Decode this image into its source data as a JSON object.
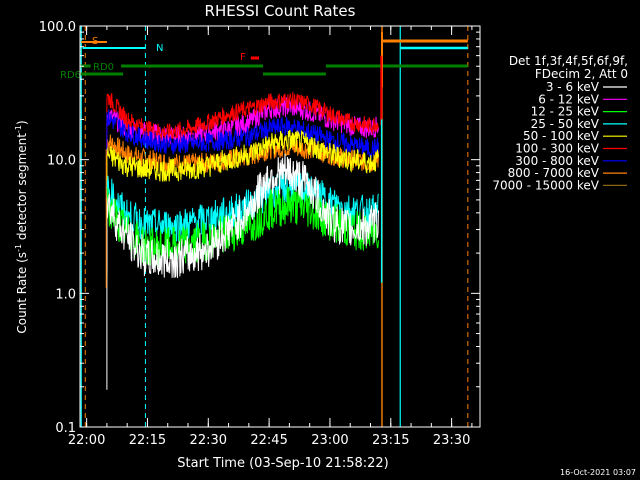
{
  "chart_data": {
    "type": "line",
    "title": "RHESSI Count Rates",
    "xlabel": "Start Time (03-Sep-10 21:58:22)",
    "ylabel_parts": [
      "Count Rate (s",
      "-1",
      " detector segment",
      "-1",
      ")"
    ],
    "yscale": "log",
    "xlim": [
      "21:58:22",
      "23:37:00"
    ],
    "ylim": [
      0.1,
      100.0
    ],
    "x_ticks": [
      "22:00",
      "22:15",
      "22:30",
      "22:45",
      "23:00",
      "23:15",
      "23:30"
    ],
    "y_ticks": [
      "0.1",
      "1.0",
      "10.0",
      "100.0"
    ],
    "legend_position": "right",
    "legend_header": [
      "Det 1f,3f,4f,5f,6f,9f,",
      "FDecim 2, Att 0"
    ],
    "grid": false,
    "series": [
      {
        "name": "3 - 6 keV",
        "color": "#ffffff",
        "x": [
          "22:05",
          "22:08",
          "22:12",
          "22:15",
          "22:20",
          "22:25",
          "22:30",
          "22:35",
          "22:40",
          "22:45",
          "22:50",
          "22:55",
          "23:00",
          "23:05",
          "23:10",
          "23:12"
        ],
        "values": [
          5.0,
          3.2,
          2.2,
          1.8,
          1.8,
          1.9,
          2.2,
          3.0,
          4.2,
          7.5,
          8.0,
          6.5,
          3.5,
          3.0,
          3.2,
          3.5
        ]
      },
      {
        "name": "6 - 12 keV",
        "color": "#ff00ff",
        "x": [
          "22:05",
          "22:10",
          "22:15",
          "22:20",
          "22:25",
          "22:30",
          "22:35",
          "22:40",
          "22:45",
          "22:50",
          "22:55",
          "23:00",
          "23:05",
          "23:10",
          "23:12"
        ],
        "values": [
          22,
          17,
          16,
          15,
          15,
          16,
          17,
          19,
          24,
          25,
          23,
          20,
          18,
          17,
          18
        ]
      },
      {
        "name": "12 - 25 keV",
        "color": "#00ff00",
        "x": [
          "22:05",
          "22:10",
          "22:15",
          "22:20",
          "22:25",
          "22:30",
          "22:35",
          "22:40",
          "22:45",
          "22:50",
          "22:55",
          "23:00",
          "23:05",
          "23:10",
          "23:12"
        ],
        "values": [
          4.5,
          2.8,
          2.2,
          2.2,
          2.3,
          2.5,
          2.8,
          3.2,
          4.2,
          4.6,
          4.3,
          3.5,
          3.0,
          2.8,
          3.0
        ]
      },
      {
        "name": "25 - 50 keV",
        "color": "#00ffff",
        "x": [
          "22:05",
          "22:10",
          "22:15",
          "22:20",
          "22:25",
          "22:30",
          "22:35",
          "22:40",
          "22:45",
          "22:50",
          "22:55",
          "23:00",
          "23:05",
          "23:10",
          "23:12"
        ],
        "values": [
          6.0,
          3.8,
          3.2,
          3.2,
          3.3,
          3.6,
          4.0,
          4.5,
          5.8,
          6.3,
          5.9,
          4.8,
          4.2,
          4.0,
          4.2
        ]
      },
      {
        "name": "50 - 100 keV",
        "color": "#ffff00",
        "x": [
          "22:05",
          "22:10",
          "22:15",
          "22:20",
          "22:25",
          "22:30",
          "22:35",
          "22:40",
          "22:45",
          "22:50",
          "22:55",
          "23:00",
          "23:05",
          "23:10",
          "23:12"
        ],
        "values": [
          11,
          9,
          8.5,
          8.3,
          8.5,
          9.0,
          10,
          11,
          13,
          14,
          13,
          11,
          10,
          9.5,
          10
        ]
      },
      {
        "name": "100 - 300 keV",
        "color": "#ff0000",
        "x": [
          "22:05",
          "22:10",
          "22:15",
          "22:20",
          "22:25",
          "22:30",
          "22:35",
          "22:40",
          "22:45",
          "22:50",
          "22:55",
          "23:00",
          "23:05",
          "23:10",
          "23:12"
        ],
        "values": [
          30,
          20,
          17,
          16,
          17,
          19,
          22,
          24,
          27,
          28,
          26,
          22,
          19,
          18,
          19
        ]
      },
      {
        "name": "300 - 800 keV",
        "color": "#0000ff",
        "x": [
          "22:05",
          "22:10",
          "22:15",
          "22:20",
          "22:25",
          "22:30",
          "22:35",
          "22:40",
          "22:45",
          "22:50",
          "22:55",
          "23:00",
          "23:05",
          "23:10",
          "23:12"
        ],
        "values": [
          21,
          16,
          14,
          13,
          13,
          13.5,
          14,
          15,
          17,
          18,
          16,
          14,
          13,
          12,
          12.5
        ]
      },
      {
        "name": "800 - 7000 keV",
        "color": "#ff8000",
        "x": [
          "22:05",
          "22:10",
          "22:15",
          "22:20",
          "22:25",
          "22:30",
          "22:35",
          "22:40",
          "22:45",
          "22:50",
          "22:55",
          "23:00",
          "23:05",
          "23:10",
          "23:12"
        ],
        "values": [
          14,
          11,
          10,
          9.5,
          9.3,
          9.5,
          10,
          10.5,
          12,
          12.5,
          12,
          11,
          10,
          9.5,
          10
        ]
      },
      {
        "name": "7000 - 15000 keV",
        "color": "#8b6914",
        "x": [],
        "values": []
      }
    ],
    "attenuator_marks": [
      {
        "label": "S",
        "color": "#ff8000"
      },
      {
        "label": "N",
        "color": "#00ffff"
      },
      {
        "label": "F",
        "color": "#ff0000"
      },
      {
        "label": "RD0",
        "color": "#008000"
      },
      {
        "label": "RD6",
        "color": "#008000"
      }
    ],
    "timestamp": "16-Oct-2021 03:07"
  }
}
